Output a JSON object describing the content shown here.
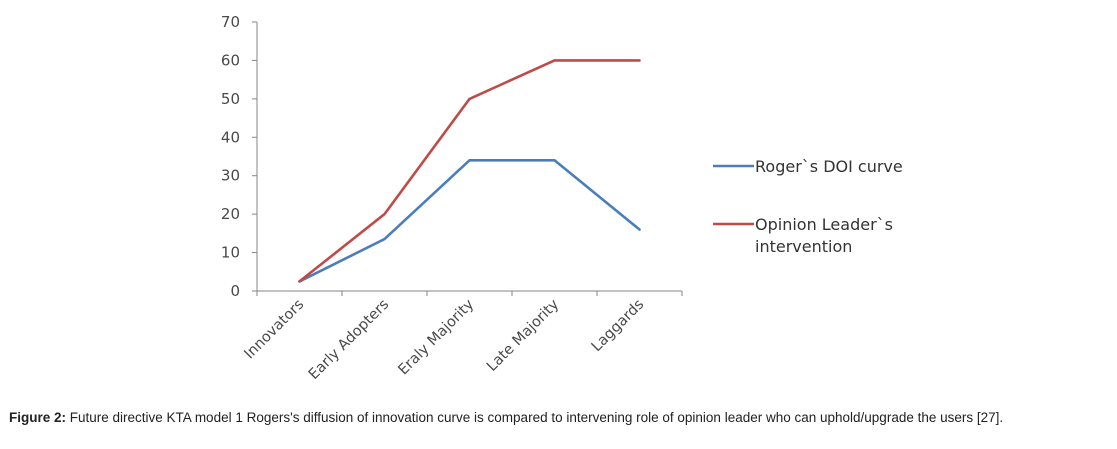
{
  "chart_data": {
    "type": "line",
    "categories": [
      "Innovators",
      "Early Adopters",
      "Eraly Majority",
      "Late Majority",
      "Laggards"
    ],
    "series": [
      {
        "name": "Roger`s DOI curve",
        "values": [
          2.5,
          13.5,
          34,
          34,
          16
        ],
        "color": "#4a7ebb"
      },
      {
        "name": "Opinion Leader`s intervention",
        "name_lines": [
          "Opinion Leader`s",
          "intervention"
        ],
        "values": [
          2.5,
          20,
          50,
          60,
          60
        ],
        "color": "#be4b48"
      }
    ],
    "yticks": [
      "0",
      "10",
      "20",
      "30",
      "40",
      "50",
      "60",
      "70"
    ],
    "ylim": [
      0,
      70
    ],
    "grid": false,
    "legend": "right"
  },
  "caption": {
    "label": "Figure 2:",
    "text": " Future directive KTA model 1 Rogers's diffusion of innovation curve is compared to intervening role of opinion leader who can uphold/upgrade the users [27]."
  }
}
